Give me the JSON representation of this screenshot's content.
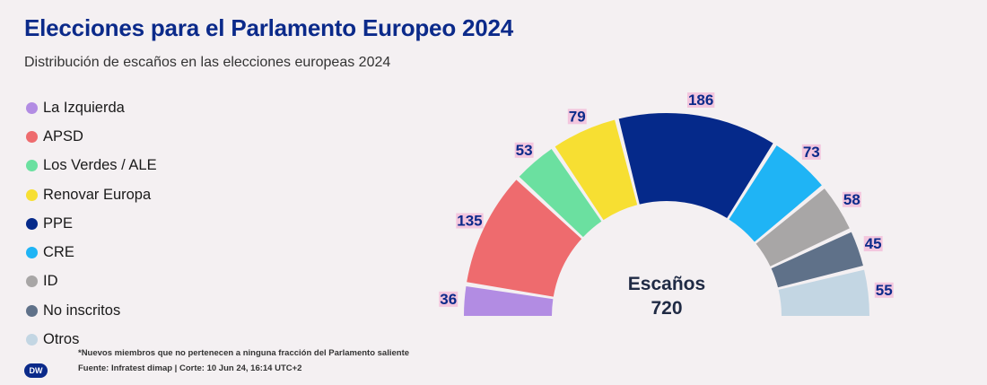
{
  "title": "Elecciones para el Parlamento Europeo 2024",
  "subtitle": "Distribución de escaños en las elecciones europeas 2024",
  "note": "*Nuevos miembros que no pertenecen a ninguna fracción del Parlamento saliente",
  "source": "Fuente: Infratest dimap | Corte: 10 Jun 24, 16:14 UTC+2",
  "logo_text": "DW",
  "chart_data": {
    "type": "pie",
    "variant": "semicircle-parliament",
    "title": "Elecciones para el Parlamento Europeo 2024",
    "subtitle": "Distribución de escaños en las elecciones europeas 2024",
    "center_label": "Escaños",
    "total": "720",
    "legend_position": "left",
    "series": [
      {
        "name": "La Izquierda",
        "value": 36,
        "color": "#b28ce3"
      },
      {
        "name": "APSD",
        "value": 135,
        "color": "#ee6b6e"
      },
      {
        "name": "Los Verdes / ALE",
        "value": 53,
        "color": "#6be0a0"
      },
      {
        "name": "Renovar Europa",
        "value": 79,
        "color": "#f7df32"
      },
      {
        "name": "PPE",
        "value": 186,
        "color": "#05298a"
      },
      {
        "name": "CRE",
        "value": 73,
        "color": "#1fb4f5"
      },
      {
        "name": "ID",
        "value": 58,
        "color": "#a8a6a6"
      },
      {
        "name": "No inscritos",
        "value": 45,
        "color": "#5f7189"
      },
      {
        "name": "Otros",
        "value": 55,
        "color": "#c3d6e3"
      }
    ]
  }
}
